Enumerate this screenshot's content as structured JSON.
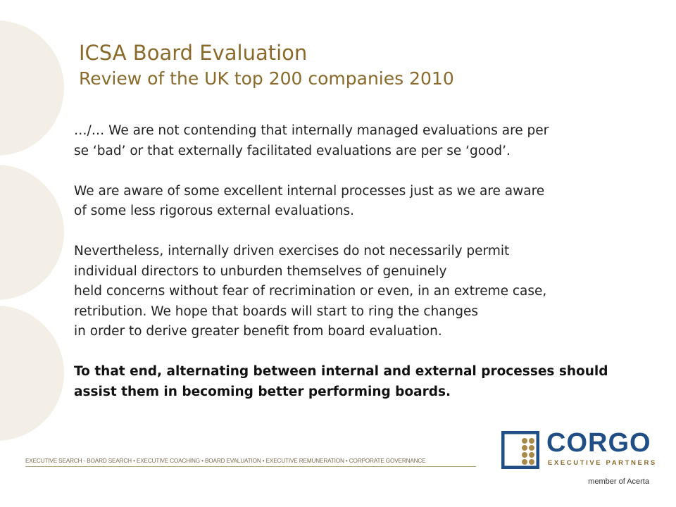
{
  "slide": {
    "title": "ICSA  Board Evaluation",
    "subtitle": "Review of the UK top 200 companies 2010",
    "paragraphs": [
      {
        "bold": false,
        "lines": [
          "…/… We are not contending that internally managed evaluations are per",
          "se ‘bad’ or that externally facilitated evaluations are per se ‘good’."
        ]
      },
      {
        "bold": false,
        "lines": [
          "We are aware of some excellent internal processes just as we are aware",
          "of some less rigorous external evaluations."
        ]
      },
      {
        "bold": false,
        "lines": [
          "Nevertheless, internally driven exercises do not necessarily permit",
          "individual directors to unburden themselves of genuinely",
          "held concerns without fear of recrimination or even, in an extreme case,",
          "retribution. We hope that boards will start to ring the changes",
          "in order to derive greater benefit from board evaluation."
        ]
      },
      {
        "bold": true,
        "lines": [
          "To that end, alternating between internal and external processes should",
          "assist them in becoming better performing boards."
        ]
      }
    ]
  },
  "footer": {
    "services": "EXECUTIVE SEARCH - BOARD SEARCH  •  EXECUTIVE COACHING  •  BOARD EVALUATION  •  EXECUTIVE REMUNERATION  •  CORPORATE GOVERNANCE",
    "logo_word": "CORGO",
    "logo_sub": "EXECUTIVE PARTNERS",
    "member": "member of Acerta"
  },
  "colors": {
    "title": "#8a6a2b",
    "decor_circles": "#f3efe6",
    "logo_blue": "#1f4f85",
    "logo_gold": "#a8894a"
  }
}
